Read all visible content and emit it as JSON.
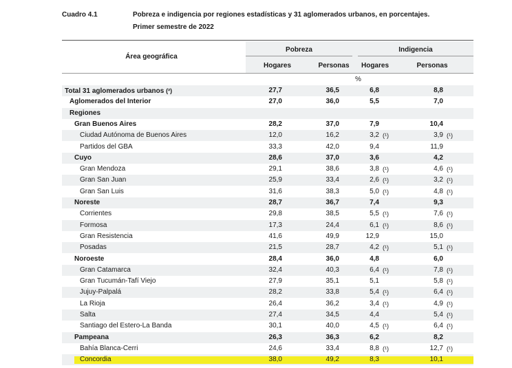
{
  "header": {
    "number": "Cuadro 4.1",
    "title": [
      "Pobreza e indigencia por regiones estadísticas y 31 aglomerados urbanos, en porcentajes.",
      "Primer semestre de 2022"
    ]
  },
  "table": {
    "area_header": "Área geográfica",
    "groups": [
      {
        "name": "Pobreza",
        "columns": [
          "Hogares",
          "Personas"
        ]
      },
      {
        "name": "Indigencia",
        "columns": [
          "Hogares",
          "Personas"
        ]
      }
    ],
    "unit": "%",
    "total": {
      "name": "Total 31 aglomerados urbanos",
      "note": "(²)",
      "cells": [
        "27,7",
        "36,5",
        "6,8",
        "8,8"
      ]
    },
    "interior": {
      "name": "Aglomerados del Interior",
      "cells": [
        "27,0",
        "36,0",
        "5,5",
        "7,0"
      ]
    },
    "regions_label": "Regiones",
    "regions": [
      {
        "name": "Gran Buenos Aires",
        "cells": [
          "28,2",
          "37,0",
          "7,9",
          "10,4"
        ],
        "areas": [
          {
            "name": "Ciudad Autónoma de Buenos Aires",
            "cells": [
              "12,0",
              "16,2",
              {
                "value": "3,2",
                "note": "(¹)"
              },
              {
                "value": "3,9",
                "note": "(¹)"
              }
            ]
          },
          {
            "name": "Partidos del GBA",
            "cells": [
              "33,3",
              "42,0",
              "9,4",
              "11,9"
            ]
          }
        ]
      },
      {
        "name": "Cuyo",
        "cells": [
          "28,6",
          "37,0",
          "3,6",
          "4,2"
        ],
        "areas": [
          {
            "name": "Gran Mendoza",
            "cells": [
              "29,1",
              "38,6",
              {
                "value": "3,8",
                "note": "(¹)"
              },
              {
                "value": "4,6",
                "note": "(¹)"
              }
            ]
          },
          {
            "name": "Gran San Juan",
            "cells": [
              "25,9",
              "33,4",
              {
                "value": "2,6",
                "note": "(¹)"
              },
              {
                "value": "3,2",
                "note": "(¹)"
              }
            ]
          },
          {
            "name": "Gran San Luis",
            "cells": [
              "31,6",
              "38,3",
              {
                "value": "5,0",
                "note": "(¹)"
              },
              {
                "value": "4,8",
                "note": "(¹)"
              }
            ]
          }
        ]
      },
      {
        "name": "Noreste",
        "cells": [
          "28,7",
          "36,7",
          "7,4",
          "9,3"
        ],
        "areas": [
          {
            "name": "Corrientes",
            "cells": [
              "29,8",
              "38,5",
              {
                "value": "5,5",
                "note": "(¹)"
              },
              {
                "value": "7,6",
                "note": "(¹)"
              }
            ]
          },
          {
            "name": "Formosa",
            "cells": [
              "17,3",
              "24,4",
              {
                "value": "6,1",
                "note": "(¹)"
              },
              {
                "value": "8,6",
                "note": "(¹)"
              }
            ]
          },
          {
            "name": "Gran Resistencia",
            "cells": [
              "41,6",
              "49,9",
              "12,9",
              "15,0"
            ]
          },
          {
            "name": "Posadas",
            "cells": [
              "21,5",
              "28,7",
              {
                "value": "4,2",
                "note": "(¹)"
              },
              {
                "value": "5,1",
                "note": "(¹)"
              }
            ]
          }
        ]
      },
      {
        "name": "Noroeste",
        "cells": [
          "28,4",
          "36,0",
          "4,8",
          "6,0"
        ],
        "areas": [
          {
            "name": "Gran Catamarca",
            "cells": [
              "32,4",
              "40,3",
              {
                "value": "6,4",
                "note": "(¹)"
              },
              {
                "value": "7,8",
                "note": "(¹)"
              }
            ]
          },
          {
            "name": "Gran Tucumán-Tafí Viejo",
            "cells": [
              "27,9",
              "35,1",
              "5,1",
              {
                "value": "5,8",
                "note": "(¹)"
              }
            ]
          },
          {
            "name": "Jujuy-Palpalá",
            "cells": [
              "28,2",
              "33,8",
              {
                "value": "5,4",
                "note": "(¹)"
              },
              {
                "value": "6,4",
                "note": "(¹)"
              }
            ]
          },
          {
            "name": "La Rioja",
            "cells": [
              "26,4",
              "36,2",
              {
                "value": "3,4",
                "note": "(¹)"
              },
              {
                "value": "4,9",
                "note": "(¹)"
              }
            ]
          },
          {
            "name": "Salta",
            "cells": [
              "27,4",
              "34,5",
              "4,4",
              {
                "value": "5,4",
                "note": "(¹)"
              }
            ]
          },
          {
            "name": "Santiago del Estero-La Banda",
            "cells": [
              "30,1",
              "40,0",
              {
                "value": "4,5",
                "note": "(¹)"
              },
              {
                "value": "6,4",
                "note": "(¹)"
              }
            ]
          }
        ]
      },
      {
        "name": "Pampeana",
        "cells": [
          "26,3",
          "36,3",
          "6,2",
          "8,2"
        ],
        "areas": [
          {
            "name": "Bahía Blanca-Cerri",
            "cells": [
              "24,6",
              "33,4",
              {
                "value": "8,8",
                "note": "(¹)"
              },
              {
                "value": "12,7",
                "note": "(¹)"
              }
            ]
          },
          {
            "name": "Concordia",
            "cells": [
              "38,0",
              "49,2",
              "8,3",
              "10,1"
            ]
          }
        ]
      }
    ]
  }
}
